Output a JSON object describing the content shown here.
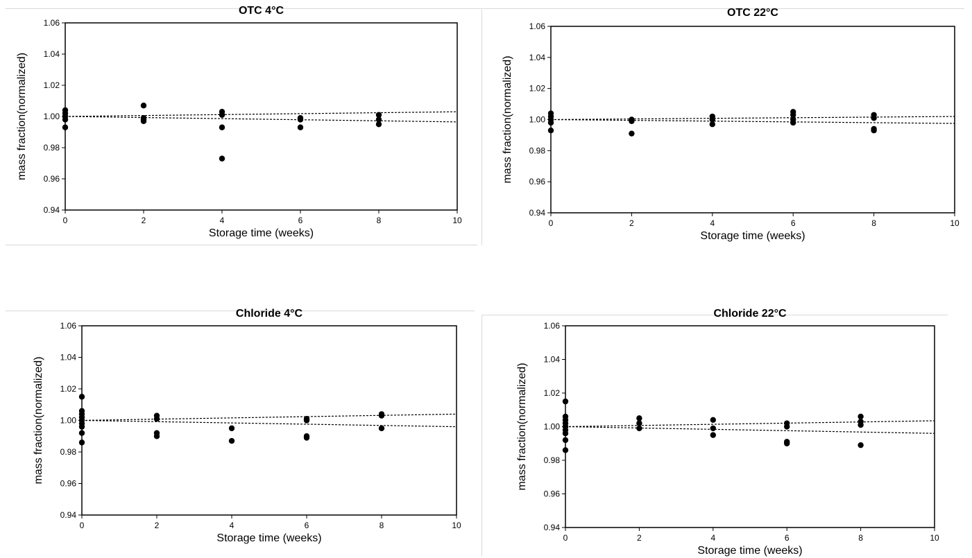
{
  "chart_data": [
    {
      "type": "scatter",
      "title": "OTC 4°C",
      "xlabel": "Storage time (weeks)",
      "ylabel": "mass fraction(normalized)",
      "xlim": [
        0,
        10
      ],
      "ylim": [
        0.94,
        1.06
      ],
      "xticks": [
        "0",
        "2",
        "4",
        "6",
        "8",
        "10"
      ],
      "yticks": [
        "0.94",
        "0.96",
        "0.98",
        "1.00",
        "1.02",
        "1.04",
        "1.06"
      ],
      "points": [
        [
          0,
          1.004
        ],
        [
          0,
          1.002
        ],
        [
          0,
          1.0
        ],
        [
          0,
          0.998
        ],
        [
          0,
          0.993
        ],
        [
          2,
          1.007
        ],
        [
          2,
          0.999
        ],
        [
          2,
          0.998
        ],
        [
          2,
          0.997
        ],
        [
          4,
          1.003
        ],
        [
          4,
          1.001
        ],
        [
          4,
          0.993
        ],
        [
          4,
          0.973
        ],
        [
          6,
          0.999
        ],
        [
          6,
          0.998
        ],
        [
          6,
          0.993
        ],
        [
          8,
          1.001
        ],
        [
          8,
          0.998
        ],
        [
          8,
          0.995
        ]
      ],
      "trend_lines": [
        {
          "x": [
            0,
            10
          ],
          "y": [
            1.0,
            1.003
          ]
        },
        {
          "x": [
            0,
            10
          ],
          "y": [
            1.0,
            0.9965
          ]
        }
      ]
    },
    {
      "type": "scatter",
      "title": "OTC 22°C",
      "xlabel": "Storage time (weeks)",
      "ylabel": "mass fraction(normalized)",
      "xlim": [
        0,
        10
      ],
      "ylim": [
        0.94,
        1.06
      ],
      "xticks": [
        "0",
        "2",
        "4",
        "6",
        "8",
        "10"
      ],
      "yticks": [
        "0.94",
        "0.96",
        "0.98",
        "1.00",
        "1.02",
        "1.04",
        "1.06"
      ],
      "points": [
        [
          0,
          1.004
        ],
        [
          0,
          1.002
        ],
        [
          0,
          1.0
        ],
        [
          0,
          0.998
        ],
        [
          0,
          0.993
        ],
        [
          2,
          1.0
        ],
        [
          2,
          0.999
        ],
        [
          2,
          0.991
        ],
        [
          4,
          1.002
        ],
        [
          4,
          1.0
        ],
        [
          4,
          0.997
        ],
        [
          6,
          1.005
        ],
        [
          6,
          1.003
        ],
        [
          6,
          1.0
        ],
        [
          6,
          0.998
        ],
        [
          8,
          1.003
        ],
        [
          8,
          1.001
        ],
        [
          8,
          0.994
        ],
        [
          8,
          0.993
        ]
      ],
      "trend_lines": [
        {
          "x": [
            0,
            10
          ],
          "y": [
            1.0,
            1.002
          ]
        },
        {
          "x": [
            0,
            10
          ],
          "y": [
            1.0,
            0.9975
          ]
        }
      ]
    },
    {
      "type": "scatter",
      "title": "Chloride 4°C",
      "xlabel": "Storage time (weeks)",
      "ylabel": "mass fraction(normalized)",
      "xlim": [
        0,
        10
      ],
      "ylim": [
        0.94,
        1.06
      ],
      "xticks": [
        "0",
        "2",
        "4",
        "6",
        "8",
        "10"
      ],
      "yticks": [
        "0.94",
        "0.96",
        "0.98",
        "1.00",
        "1.02",
        "1.04",
        "1.06"
      ],
      "points": [
        [
          0,
          1.015
        ],
        [
          0,
          1.006
        ],
        [
          0,
          1.004
        ],
        [
          0,
          1.002
        ],
        [
          0,
          1.0
        ],
        [
          0,
          0.998
        ],
        [
          0,
          0.996
        ],
        [
          0,
          0.992
        ],
        [
          0,
          0.986
        ],
        [
          2,
          1.003
        ],
        [
          2,
          1.001
        ],
        [
          2,
          0.992
        ],
        [
          2,
          0.99
        ],
        [
          4,
          0.995
        ],
        [
          4,
          0.987
        ],
        [
          6,
          1.001
        ],
        [
          6,
          1.0
        ],
        [
          6,
          0.99
        ],
        [
          6,
          0.989
        ],
        [
          8,
          1.004
        ],
        [
          8,
          1.003
        ],
        [
          8,
          0.995
        ]
      ],
      "trend_lines": [
        {
          "x": [
            0,
            10
          ],
          "y": [
            1.0,
            1.004
          ]
        },
        {
          "x": [
            0,
            10
          ],
          "y": [
            1.0,
            0.996
          ]
        }
      ]
    },
    {
      "type": "scatter",
      "title": "Chloride 22°C",
      "xlabel": "Storage time (weeks)",
      "ylabel": "mass fraction(normalized)",
      "xlim": [
        0,
        10
      ],
      "ylim": [
        0.94,
        1.06
      ],
      "xticks": [
        "0",
        "2",
        "4",
        "6",
        "8",
        "10"
      ],
      "yticks": [
        "0.94",
        "0.96",
        "0.98",
        "1.00",
        "1.02",
        "1.04",
        "1.06"
      ],
      "points": [
        [
          0,
          1.015
        ],
        [
          0,
          1.006
        ],
        [
          0,
          1.004
        ],
        [
          0,
          1.002
        ],
        [
          0,
          1.0
        ],
        [
          0,
          0.998
        ],
        [
          0,
          0.996
        ],
        [
          0,
          0.992
        ],
        [
          0,
          0.986
        ],
        [
          2,
          1.005
        ],
        [
          2,
          1.002
        ],
        [
          2,
          0.999
        ],
        [
          4,
          1.004
        ],
        [
          4,
          0.999
        ],
        [
          4,
          0.995
        ],
        [
          6,
          1.002
        ],
        [
          6,
          1.0
        ],
        [
          6,
          0.991
        ],
        [
          6,
          0.99
        ],
        [
          8,
          1.006
        ],
        [
          8,
          1.003
        ],
        [
          8,
          1.001
        ],
        [
          8,
          0.989
        ]
      ],
      "trend_lines": [
        {
          "x": [
            0,
            10
          ],
          "y": [
            1.0,
            1.0035
          ]
        },
        {
          "x": [
            0,
            10
          ],
          "y": [
            1.0,
            0.996
          ]
        }
      ]
    }
  ]
}
